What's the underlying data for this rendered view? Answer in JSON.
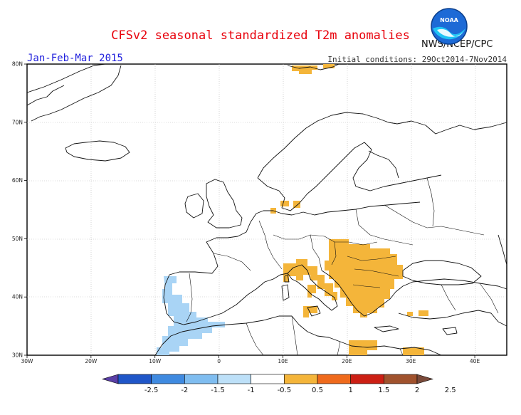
{
  "header": {
    "title": "CFSv2 seasonal standardized T2m anomalies",
    "period": "Jan-Feb-Mar 2015",
    "initial_conditions": "Initial conditions: 29Oct2014-7Nov2014",
    "agency": "NWS/NCEP/CPC",
    "logo_text": "NOAA",
    "logo_icon": "noaa-logo-icon"
  },
  "map": {
    "lon_range": [
      -30,
      45
    ],
    "lat_range": [
      30,
      80
    ],
    "lon_ticks": [
      "30W",
      "20W",
      "10W",
      "0",
      "10E",
      "20E",
      "30E",
      "40E"
    ],
    "lat_ticks": [
      "30N",
      "40N",
      "50N",
      "60N",
      "70N",
      "80N"
    ]
  },
  "colorbar": {
    "labels": [
      "-2.5",
      "-2",
      "-1.5",
      "-1",
      "-0.5",
      "0.5",
      "1",
      "1.5",
      "2",
      "2.5"
    ],
    "colors": [
      "#5a3fa6",
      "#1f56c8",
      "#3f8ae0",
      "#7fbdf0",
      "#bde0f8",
      "#ffffff",
      "#f4b53a",
      "#ef6a1c",
      "#cc1f14",
      "#a0522d",
      "#7a4a3a"
    ]
  },
  "colors": {
    "warm_anomaly": "#f4b53a",
    "cool_anomaly": "#a9d4f5",
    "title": "#e8000b",
    "period": "#2222dd"
  }
}
